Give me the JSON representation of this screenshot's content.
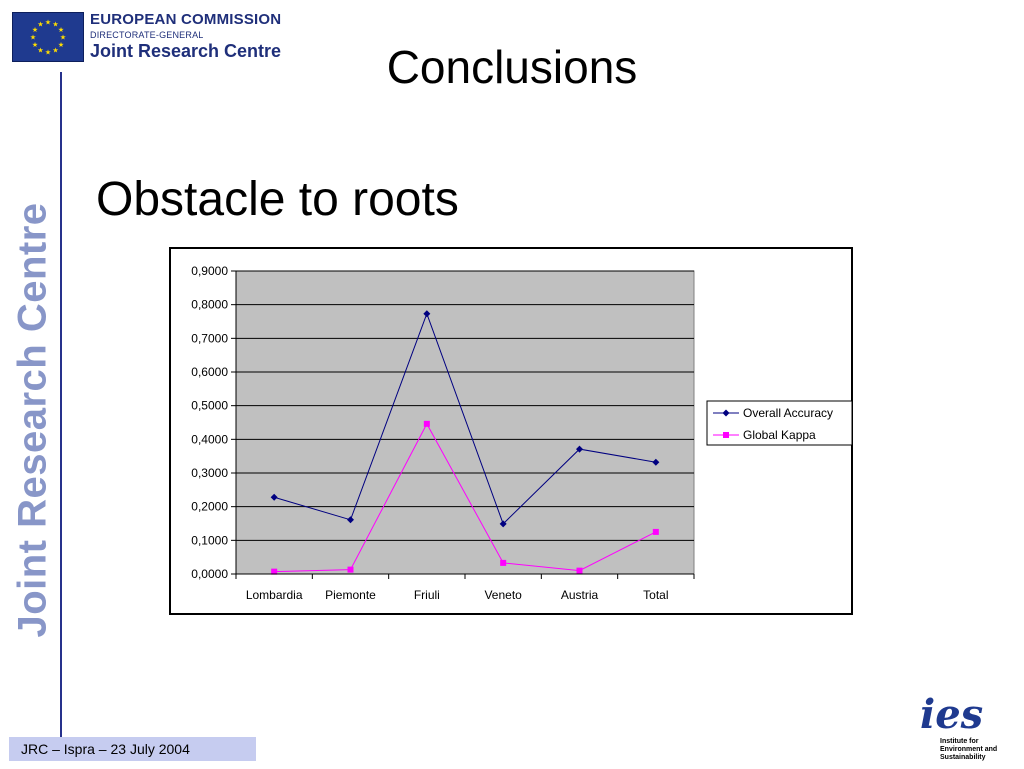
{
  "header": {
    "commission": "EUROPEAN COMMISSION",
    "directorate": "DIRECTORATE-GENERAL",
    "centre": "Joint Research Centre"
  },
  "side_title": "Joint Research Centre",
  "slide": {
    "title": "Conclusions",
    "subtitle": "Obstacle to roots"
  },
  "footer": {
    "text": "JRC – Ispra – 23 July 2004"
  },
  "ies_logo": {
    "mark": "ies",
    "lines": [
      "Institute for",
      "Environment and",
      "Sustainability"
    ]
  },
  "colors": {
    "brand_blue": "#1f3a8f",
    "side_title": "#8896c8",
    "plot_bg": "#c0c0c0",
    "series_1": "#000080",
    "series_2": "#ff00ff"
  },
  "chart_data": {
    "type": "line",
    "categories": [
      "Lombardia",
      "Piemonte",
      "Friuli",
      "Veneto",
      "Austria",
      "Total"
    ],
    "series": [
      {
        "name": "Overall Accuracy",
        "values": [
          0.228,
          0.161,
          0.773,
          0.149,
          0.371,
          0.332
        ],
        "color": "#000080",
        "marker": "diamond"
      },
      {
        "name": "Global Kappa",
        "values": [
          0.007,
          0.013,
          0.446,
          0.033,
          0.01,
          0.125
        ],
        "color": "#ff00ff",
        "marker": "square"
      }
    ],
    "ylim": [
      0,
      0.9
    ],
    "yticks": [
      "0,0000",
      "0,1000",
      "0,2000",
      "0,3000",
      "0,4000",
      "0,5000",
      "0,6000",
      "0,7000",
      "0,8000",
      "0,9000"
    ],
    "grid": true,
    "legend": "right"
  }
}
